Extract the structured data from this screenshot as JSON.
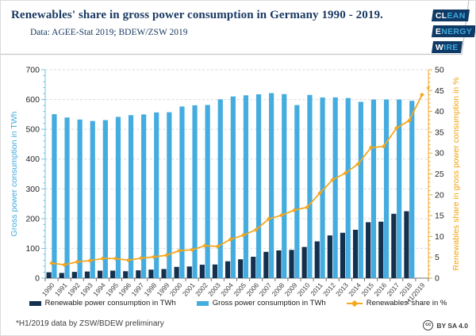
{
  "header": {
    "title": "Renewables' share in gross power consumption in Germany 1990 - 2019.",
    "subtitle": "Data: AGEE-Stat 2019; BDEW/ZSW 2019",
    "logo": {
      "lines": [
        {
          "white": "CL",
          "cyan": "EAN"
        },
        {
          "white": "E",
          "cyan": "NERGY"
        },
        {
          "white": "W",
          "cyan": "IRE"
        }
      ]
    }
  },
  "chart_data": {
    "type": "bar",
    "categories": [
      "1990",
      "1991",
      "1992",
      "1993",
      "1994",
      "1995",
      "1996",
      "1997",
      "1998",
      "1999",
      "2000",
      "2001",
      "2002",
      "2003",
      "2004",
      "2005",
      "2006",
      "2007",
      "2008",
      "2009",
      "2010",
      "2011",
      "2012",
      "2013",
      "2014",
      "2015",
      "2016",
      "2017",
      "2018",
      "H1/2019"
    ],
    "series": [
      {
        "name": "Renewable power consumption in TWh",
        "type": "bar",
        "axis": "left",
        "color": "#14304f",
        "values": [
          19.7,
          17.5,
          21.0,
          22.3,
          25.1,
          25.3,
          23.3,
          26.2,
          28.6,
          30.7,
          37.9,
          39.2,
          45.1,
          45.8,
          56.6,
          63.3,
          71.9,
          88.3,
          93.3,
          94.9,
          104.8,
          123.5,
          143.5,
          152.4,
          162.5,
          187.8,
          189.7,
          216.2,
          224.8,
          null
        ]
      },
      {
        "name": "Gross power consumption in TWh",
        "type": "bar",
        "axis": "left",
        "color": "#45acdf",
        "values": [
          550.7,
          539.6,
          532.8,
          527.9,
          530.8,
          541.6,
          547.4,
          549.9,
          556.7,
          557.3,
          576.6,
          580.5,
          581.7,
          600.7,
          610.2,
          614.1,
          617.5,
          621.5,
          618.2,
          581.3,
          615.3,
          606.8,
          607.1,
          605.0,
          592.2,
          600.0,
          599.9,
          600.1,
          595.6,
          null
        ]
      },
      {
        "name": "Renewables' share in %",
        "type": "line",
        "axis": "right",
        "color": "#f5a71e",
        "values": [
          3.6,
          3.2,
          3.9,
          4.2,
          4.7,
          4.7,
          4.3,
          4.8,
          5.1,
          5.5,
          6.6,
          6.8,
          7.8,
          7.6,
          9.3,
          10.3,
          11.6,
          14.2,
          15.1,
          16.3,
          17.0,
          20.4,
          23.6,
          25.2,
          27.4,
          31.3,
          31.6,
          36.0,
          37.8,
          44.0
        ]
      }
    ],
    "left_axis": {
      "label": "Gross power consumption in TWh",
      "min": 0,
      "max": 700,
      "major_step": 100,
      "minor_step": 20
    },
    "right_axis": {
      "label": "Renewables share in gross power consumption in %",
      "min": 0,
      "max": 50,
      "major_step": 5,
      "minor_step": 1
    },
    "grid": {
      "horizontal": true,
      "style": "dashed"
    },
    "legend_position": "bottom",
    "annotation": {
      "text": "*",
      "category": "H1/2019",
      "value": 44.0
    }
  },
  "footer": {
    "note": "*H1/2019 data by ZSW/BDEW preliminary",
    "license": "BY SA 4.0",
    "license_icon": "cc"
  },
  "colors": {
    "navy_bar": "#14304f",
    "light_blue_bar": "#45acdf",
    "orange_line": "#f5a71e",
    "title_navy": "#1a3a63",
    "left_axis_line": "#6fc0e7",
    "left_axis_label": "#41a9dc",
    "right_axis_line": "#f3a71f",
    "right_axis_label": "#f0a30a",
    "tick_text": "#262626",
    "x_label_text": "#404040",
    "bottom_axis": "#737373",
    "gridline": "#d9d9d9",
    "separator": "#c6c6c6",
    "logo_box": "#0f3a66",
    "logo_cyan": "#41a9dc"
  }
}
